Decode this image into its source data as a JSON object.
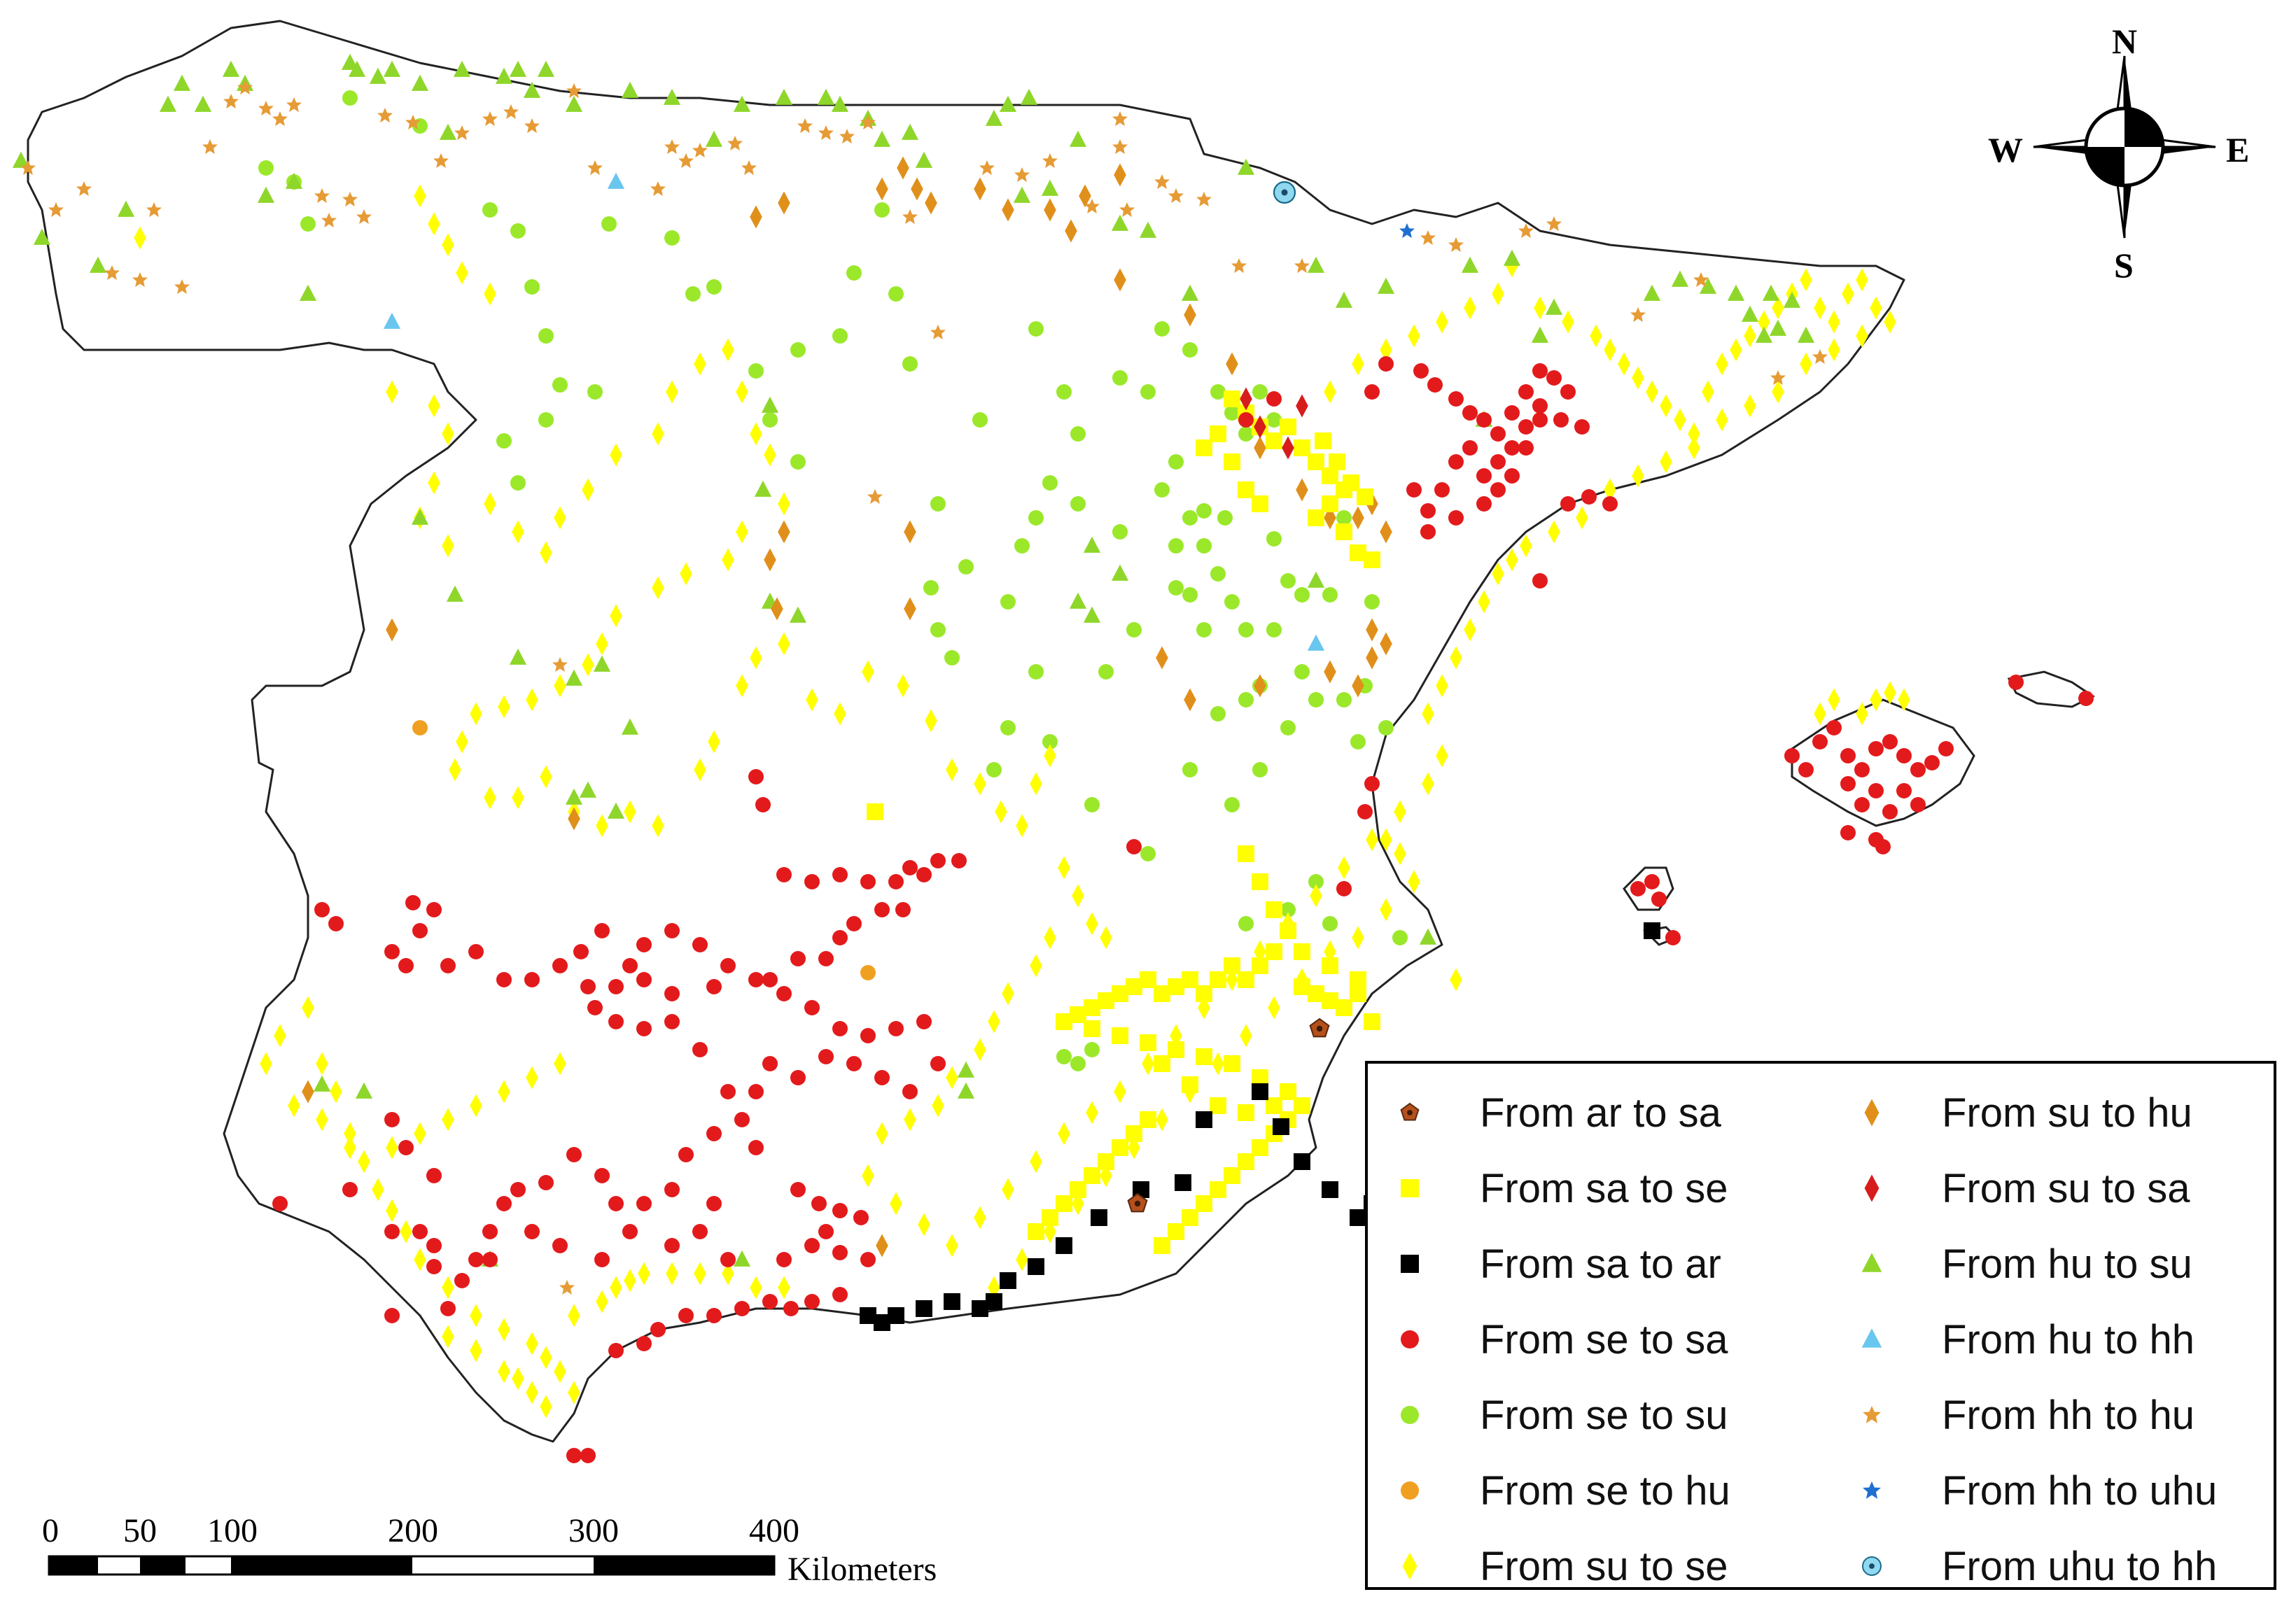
{
  "compass": {
    "north": "N",
    "south": "S",
    "east": "E",
    "west": "W"
  },
  "scale_bar": {
    "ticks": [
      "0",
      "50",
      "100",
      "200",
      "300",
      "400"
    ],
    "tick_values_km": [
      0,
      50,
      100,
      200,
      300,
      400
    ],
    "unit": "Kilometers"
  },
  "legend": {
    "items": [
      {
        "label": "From ar to sa",
        "shape": "pentagon",
        "color": "#b5501c"
      },
      {
        "label": "From sa to se",
        "shape": "square",
        "color": "#ffff00"
      },
      {
        "label": "From sa to ar",
        "shape": "square",
        "color": "#000000"
      },
      {
        "label": "From se to sa",
        "shape": "circle",
        "color": "#e31a1c"
      },
      {
        "label": "From se to su",
        "shape": "circle",
        "color": "#9be82a"
      },
      {
        "label": "From se to hu",
        "shape": "circle",
        "color": "#f0a020"
      },
      {
        "label": "From su to se",
        "shape": "diamond",
        "color": "#ffff00"
      },
      {
        "label": "From su to hu",
        "shape": "diamond",
        "color": "#e0901a"
      },
      {
        "label": "From su to sa",
        "shape": "diamond",
        "color": "#d71c1c"
      },
      {
        "label": "From hu to su",
        "shape": "triangle",
        "color": "#8fd62a"
      },
      {
        "label": "From hu to hh",
        "shape": "triangle",
        "color": "#69c6ee"
      },
      {
        "label": "From hh to hu",
        "shape": "star",
        "color": "#e69b35"
      },
      {
        "label": "From hh to uhu",
        "shape": "star",
        "color": "#1f6fd1"
      },
      {
        "label": "From uhu to hh",
        "shape": "target",
        "color": "#2aa6d6"
      }
    ]
  }
}
